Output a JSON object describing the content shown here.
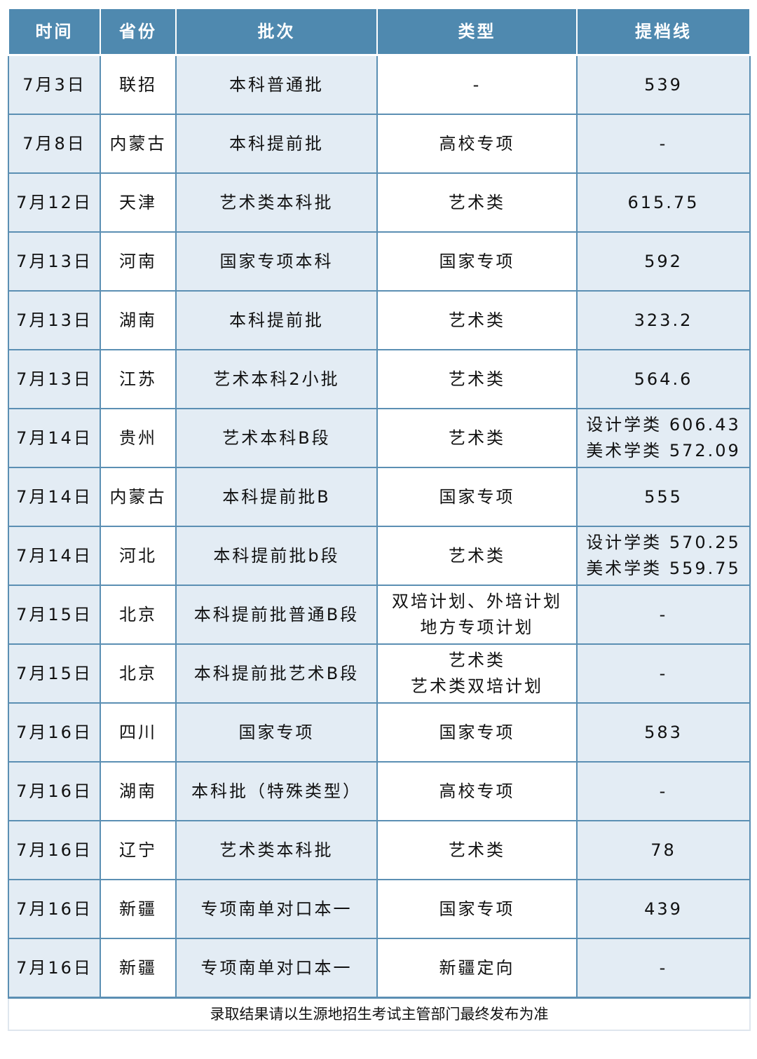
{
  "colors": {
    "header_bg": "#4f89af",
    "shaded_cell": "#e3ecf4",
    "border": "#5b8fb3"
  },
  "headers": [
    "时间",
    "省份",
    "批次",
    "类型",
    "提档线"
  ],
  "rows": [
    {
      "date": "7月3日",
      "province": "联招",
      "batch": "本科普通批",
      "type": [
        "-"
      ],
      "score": [
        "539"
      ]
    },
    {
      "date": "7月8日",
      "province": "内蒙古",
      "batch": "本科提前批",
      "type": [
        "高校专项"
      ],
      "score": [
        "-"
      ]
    },
    {
      "date": "7月12日",
      "province": "天津",
      "batch": "艺术类本科批",
      "type": [
        "艺术类"
      ],
      "score": [
        "615.75"
      ]
    },
    {
      "date": "7月13日",
      "province": "河南",
      "batch": "国家专项本科",
      "type": [
        "国家专项"
      ],
      "score": [
        "592"
      ]
    },
    {
      "date": "7月13日",
      "province": "湖南",
      "batch": "本科提前批",
      "type": [
        "艺术类"
      ],
      "score": [
        "323.2"
      ]
    },
    {
      "date": "7月13日",
      "province": "江苏",
      "batch": "艺术本科2小批",
      "type": [
        "艺术类"
      ],
      "score": [
        "564.6"
      ]
    },
    {
      "date": "7月14日",
      "province": "贵州",
      "batch": "艺术本科B段",
      "type": [
        "艺术类"
      ],
      "score": [
        "设计学类 606.43",
        "美术学类 572.09"
      ]
    },
    {
      "date": "7月14日",
      "province": "内蒙古",
      "batch": "本科提前批B",
      "type": [
        "国家专项"
      ],
      "score": [
        "555"
      ]
    },
    {
      "date": "7月14日",
      "province": "河北",
      "batch": "本科提前批b段",
      "type": [
        "艺术类"
      ],
      "score": [
        "设计学类 570.25",
        "美术学类 559.75"
      ]
    },
    {
      "date": "7月15日",
      "province": "北京",
      "batch": "本科提前批普通B段",
      "type": [
        "双培计划、外培计划",
        "地方专项计划"
      ],
      "score": [
        "-"
      ]
    },
    {
      "date": "7月15日",
      "province": "北京",
      "batch": "本科提前批艺术B段",
      "type": [
        "艺术类",
        "艺术类双培计划"
      ],
      "score": [
        "-"
      ]
    },
    {
      "date": "7月16日",
      "province": "四川",
      "batch": "国家专项",
      "type": [
        "国家专项"
      ],
      "score": [
        "583"
      ]
    },
    {
      "date": "7月16日",
      "province": "湖南",
      "batch": "本科批（特殊类型）",
      "type": [
        "高校专项"
      ],
      "score": [
        "-"
      ]
    },
    {
      "date": "7月16日",
      "province": "辽宁",
      "batch": "艺术类本科批",
      "type": [
        "艺术类"
      ],
      "score": [
        "78"
      ]
    },
    {
      "date": "7月16日",
      "province": "新疆",
      "batch": "专项南单对口本一",
      "type": [
        "国家专项"
      ],
      "score": [
        "439"
      ]
    },
    {
      "date": "7月16日",
      "province": "新疆",
      "batch": "专项南单对口本一",
      "type": [
        "新疆定向"
      ],
      "score": [
        "-"
      ]
    }
  ],
  "footer": "录取结果请以生源地招生考试主管部门最终发布为准"
}
